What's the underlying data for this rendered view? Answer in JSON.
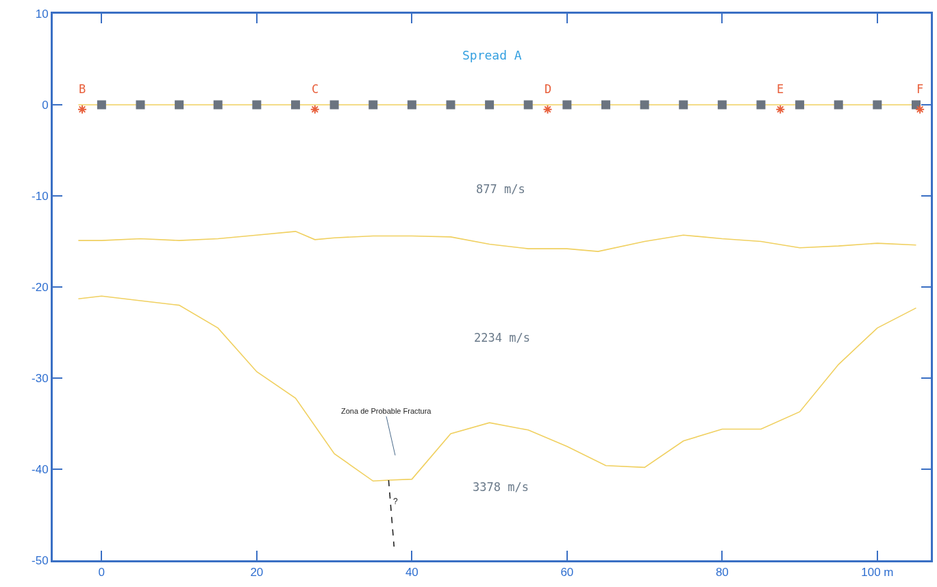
{
  "chart_data": {
    "type": "line",
    "title": "Spread A",
    "xlim": [
      -6.3,
      106.9
    ],
    "ylim": [
      -50,
      10
    ],
    "xticks": [
      0,
      20,
      40,
      60,
      80,
      {
        "value": 100,
        "label": "100 m"
      }
    ],
    "yticks": [
      -50,
      -40,
      -30,
      -20,
      -10,
      0,
      10
    ],
    "series": [
      {
        "color": "#f0d060",
        "x": [
          -3,
          105
        ],
        "values": [
          0,
          0
        ]
      },
      {
        "type": "scatter",
        "marker": "square",
        "color": "#6b7480",
        "x": [
          0,
          5,
          10,
          15,
          20,
          25,
          30,
          35,
          40,
          45,
          50,
          55,
          60,
          65,
          70,
          75,
          80,
          85,
          90,
          95,
          100,
          105
        ],
        "values": [
          0,
          0,
          0,
          0,
          0,
          0,
          0,
          0,
          0,
          0,
          0,
          0,
          0,
          0,
          0,
          0,
          0,
          0,
          0,
          0,
          0,
          0
        ]
      },
      {
        "type": "scatter",
        "marker": "cross",
        "color": "#e8603c",
        "x": [
          -2.5,
          27.5,
          57.5,
          87.5,
          105.5
        ],
        "values": [
          -0.5,
          -0.5,
          -0.5,
          -0.5,
          -0.5
        ]
      },
      {
        "color": "#f0d060",
        "x": [
          -3,
          0,
          5,
          10,
          15,
          20,
          25,
          27.5,
          30,
          35,
          40,
          45,
          50,
          55,
          60,
          64,
          70,
          75,
          80,
          85,
          90,
          95,
          100,
          105
        ],
        "values": [
          -14.9,
          -14.9,
          -14.7,
          -14.9,
          -14.7,
          -14.3,
          -13.9,
          -14.8,
          -14.6,
          -14.4,
          -14.4,
          -14.5,
          -15.3,
          -15.8,
          -15.8,
          -16.1,
          -15.0,
          -14.3,
          -14.7,
          -15.0,
          -15.7,
          -15.5,
          -15.2,
          -15.4
        ]
      },
      {
        "color": "#f0d060",
        "x": [
          -3,
          0,
          5,
          10,
          15,
          20,
          25,
          30,
          35,
          37,
          40,
          45,
          50,
          55,
          60,
          65,
          70,
          75,
          80,
          85,
          90,
          95,
          100,
          105
        ],
        "values": [
          -21.3,
          -21.0,
          -21.5,
          -22.0,
          -24.5,
          -29.3,
          -32.2,
          -38.3,
          -41.3,
          -41.2,
          -41.1,
          -36.1,
          -34.9,
          -35.7,
          -37.5,
          -39.6,
          -39.8,
          -36.9,
          -35.6,
          -35.6,
          -33.7,
          -28.5,
          -24.5,
          -22.3
        ]
      },
      {
        "type": "line",
        "line_style": "dashed",
        "color": "#222222",
        "x": [
          37,
          37.7
        ],
        "values": [
          -41.2,
          -48.5
        ]
      }
    ],
    "annotations": [
      {
        "text": "B",
        "x": -2.5,
        "y": -0.5
      },
      {
        "text": "C",
        "x": 27.5,
        "y": -0.5
      },
      {
        "text": "D",
        "x": 57.5,
        "y": -0.5
      },
      {
        "text": "E",
        "x": 87.5,
        "y": -0.5
      },
      {
        "text": "F",
        "x": 105.5,
        "y": -0.5
      },
      "877 m/s",
      "2234 m/s",
      "3378 m/s",
      "Zona de Probable Fractura",
      {
        "text": "?",
        "x": 37.4,
        "y": -43.5
      }
    ]
  }
}
